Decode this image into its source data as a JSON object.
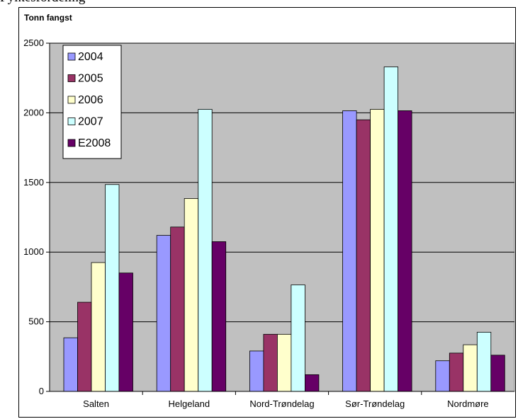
{
  "caption": "Fylkesfordeling",
  "chart_data": {
    "type": "bar",
    "ylabel": "Tonn fangst",
    "xlabel": "",
    "ylim": [
      0,
      2500
    ],
    "yticks": [
      0,
      500,
      1000,
      1500,
      2000,
      2500
    ],
    "grid": true,
    "legend_position": "top-left",
    "plot_background": "#c0c0c0",
    "categories": [
      "Salten",
      "Helgeland",
      "Nord-Trøndelag",
      "Sør-Trøndelag",
      "Nordmøre"
    ],
    "series": [
      {
        "name": "2004",
        "color": "#9999ff",
        "values": [
          385,
          1120,
          290,
          2015,
          220
        ]
      },
      {
        "name": "2005",
        "color": "#993366",
        "values": [
          640,
          1180,
          410,
          1950,
          275
        ]
      },
      {
        "name": "2006",
        "color": "#ffffcc",
        "values": [
          925,
          1385,
          410,
          2025,
          335
        ]
      },
      {
        "name": "2007",
        "color": "#ccffff",
        "values": [
          1485,
          2025,
          765,
          2330,
          425
        ]
      },
      {
        "name": "E2008",
        "color": "#660066",
        "values": [
          850,
          1075,
          120,
          2015,
          260
        ]
      }
    ]
  }
}
